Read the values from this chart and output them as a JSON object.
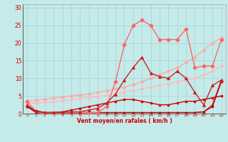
{
  "title": "",
  "xlabel": "Vent moyen/en rafales ( km/h )",
  "ylabel": "",
  "xlim": [
    -0.5,
    22.5
  ],
  "ylim": [
    0,
    31
  ],
  "yticks": [
    0,
    5,
    10,
    15,
    20,
    25,
    30
  ],
  "xticks": [
    0,
    1,
    2,
    3,
    4,
    5,
    6,
    7,
    8,
    9,
    10,
    11,
    12,
    13,
    14,
    15,
    16,
    17,
    18,
    19,
    20,
    21,
    22
  ],
  "bg_color": "#c5eaea",
  "grid_color": "#a8d8d8",
  "lines": [
    {
      "x": [
        0,
        1,
        2,
        3,
        4,
        5,
        6,
        7,
        8,
        9,
        10,
        11,
        12,
        13,
        14,
        15,
        16,
        17,
        18,
        19,
        20,
        21,
        22
      ],
      "y": [
        3.5,
        3.8,
        4.1,
        4.4,
        4.7,
        5.0,
        5.3,
        5.6,
        6.0,
        6.5,
        7.0,
        7.5,
        8.2,
        9.0,
        10.0,
        11.0,
        12.0,
        13.0,
        14.5,
        16.0,
        18.0,
        20.0,
        21.5
      ],
      "color": "#ffaaaa",
      "lw": 1.0,
      "marker": "D",
      "ms": 2.0,
      "zorder": 2
    },
    {
      "x": [
        0,
        1,
        2,
        3,
        4,
        5,
        6,
        7,
        8,
        9,
        10,
        11,
        12,
        13,
        14,
        15,
        16,
        17,
        18,
        19,
        20,
        21,
        22
      ],
      "y": [
        3.0,
        3.0,
        3.2,
        3.4,
        3.7,
        4.0,
        4.2,
        4.5,
        4.8,
        5.2,
        5.6,
        6.0,
        6.5,
        7.0,
        7.5,
        8.0,
        8.5,
        9.0,
        9.5,
        10.0,
        11.0,
        12.0,
        13.5
      ],
      "color": "#ffbbbb",
      "lw": 1.0,
      "marker": "D",
      "ms": 2.0,
      "zorder": 2
    },
    {
      "x": [
        0,
        1,
        2,
        3,
        4,
        5,
        6,
        7,
        8,
        9,
        10,
        11,
        12,
        13,
        14,
        15,
        16,
        17,
        18,
        19,
        20,
        21,
        22
      ],
      "y": [
        2.5,
        0.5,
        0.3,
        0.3,
        0.3,
        0.5,
        0.5,
        1.0,
        1.5,
        3.0,
        5.5,
        9.5,
        13.0,
        16.0,
        11.5,
        10.5,
        10.0,
        12.0,
        10.0,
        6.0,
        2.5,
        8.0,
        9.5
      ],
      "color": "#cc2222",
      "lw": 1.0,
      "marker": "^",
      "ms": 2.5,
      "zorder": 4
    },
    {
      "x": [
        0,
        1,
        2,
        3,
        4,
        5,
        6,
        7,
        8,
        9,
        10,
        11,
        12,
        13,
        14,
        15,
        16,
        17,
        18,
        19,
        20,
        21,
        22
      ],
      "y": [
        3.5,
        0.5,
        0.3,
        0.3,
        0.3,
        0.3,
        0.3,
        0.3,
        0.3,
        2.0,
        9.0,
        19.5,
        25.0,
        26.5,
        25.0,
        21.0,
        21.0,
        21.0,
        24.0,
        13.0,
        13.5,
        13.5,
        21.0
      ],
      "color": "#ff6666",
      "lw": 1.0,
      "marker": "D",
      "ms": 2.5,
      "zorder": 3
    },
    {
      "x": [
        0,
        1,
        2,
        3,
        4,
        5,
        6,
        7,
        8,
        9,
        10,
        11,
        12,
        13,
        14,
        15,
        16,
        17,
        18,
        19,
        20,
        21,
        22
      ],
      "y": [
        2.0,
        0.8,
        0.3,
        0.3,
        0.5,
        1.0,
        1.5,
        2.0,
        2.5,
        3.0,
        3.5,
        4.0,
        4.0,
        3.5,
        3.0,
        2.5,
        2.5,
        3.0,
        3.5,
        3.5,
        4.0,
        4.5,
        5.0
      ],
      "color": "#cc0000",
      "lw": 1.0,
      "marker": "s",
      "ms": 2.0,
      "zorder": 3
    },
    {
      "x": [
        0,
        1,
        2,
        3,
        4,
        5,
        6,
        7,
        8,
        9,
        10,
        11,
        12,
        13,
        14,
        15,
        16,
        17,
        18,
        19,
        20,
        21,
        22
      ],
      "y": [
        2.0,
        0.3,
        0.3,
        0.3,
        0.3,
        0.3,
        0.3,
        0.3,
        0.3,
        0.3,
        0.3,
        0.3,
        0.3,
        0.3,
        0.3,
        0.3,
        0.3,
        0.3,
        0.3,
        0.3,
        0.5,
        2.5,
        9.5
      ],
      "color": "#dd1111",
      "lw": 0.9,
      "marker": "^",
      "ms": 1.8,
      "zorder": 2
    },
    {
      "x": [
        0,
        1,
        2,
        3,
        4,
        5,
        6,
        7,
        8,
        9,
        10,
        11,
        12,
        13,
        14,
        15,
        16,
        17,
        18,
        19,
        20,
        21,
        22
      ],
      "y": [
        2.0,
        0.3,
        0.3,
        0.3,
        0.3,
        0.3,
        0.3,
        0.3,
        0.3,
        0.3,
        0.3,
        0.3,
        0.3,
        0.3,
        0.3,
        0.3,
        0.3,
        0.3,
        0.3,
        0.3,
        0.5,
        2.0,
        9.0
      ],
      "color": "#bb0000",
      "lw": 0.9,
      "marker": "s",
      "ms": 1.8,
      "zorder": 2
    }
  ]
}
